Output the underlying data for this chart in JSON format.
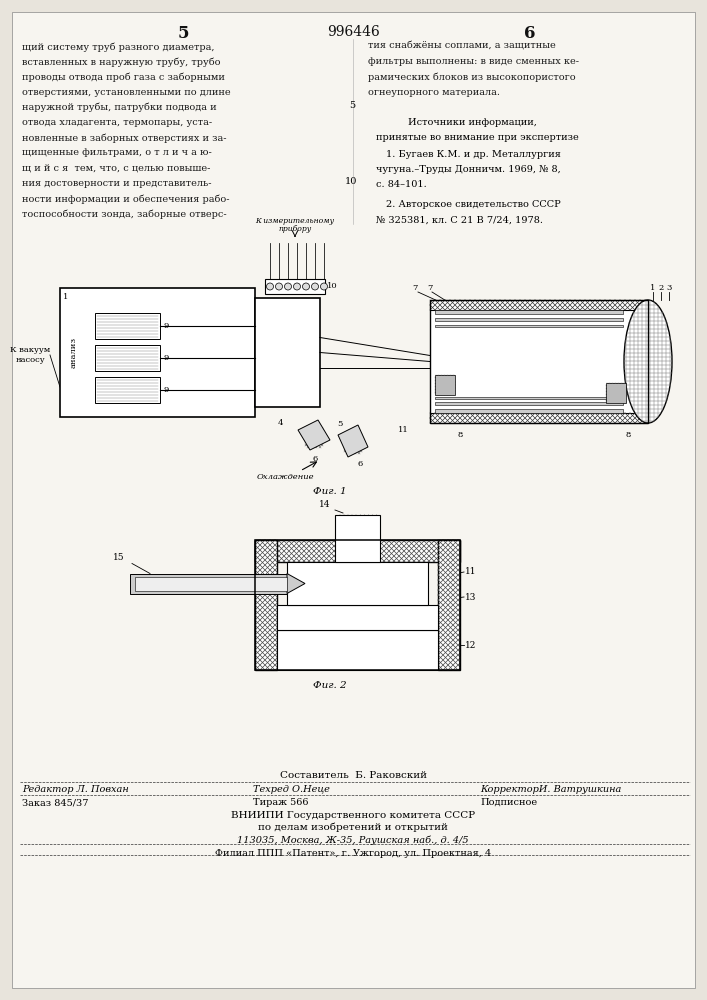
{
  "bg_color": "#e8e4dc",
  "page_color": "#f7f5f0",
  "title_center": "996446",
  "left_col_num": "5",
  "right_col_num": "6",
  "left_text": [
    "щий систему труб разного диаметра,",
    "вставленных в наружную трубу, трубо",
    "проводы отвода проб газа с заборными",
    "отверстиями, установленными по длине",
    "наружной трубы, патрубки подвода и",
    "отвода хладагента, термопары, уста-",
    "новленные в заборных отверстиях и за-",
    "щищенные фильтрами, о т л и ч а ю-",
    "щ и й с я  тем, что, с целью повыше-",
    "ния достоверности и представитель-",
    "ности информации и обеспечения рабо-",
    "тоспособности зонда, заборные отверс-"
  ],
  "right_text_top": [
    "тия снабжёны соплами, а защитные",
    "фильтры выполнены: в виде сменных ке-",
    "рамических блоков из высокопористого",
    "огнеупорного материала."
  ],
  "sources_header": "Источники информации,",
  "sources_subheader": "принятые во внимание при экспертизе",
  "source1": "1. Бугаев К.М. и др. Металлургия",
  "source1b": "чугуна.–Труды Донничм. 1969, № 8,",
  "source1c": "с. 84–101.",
  "source2": "2. Авторское свидетельство СССР",
  "source2b": "№ 325381, кл. С 21 В 7/24, 1978.",
  "fig1_label": "Фиг. 1",
  "fig2_label": "Фиг. 2",
  "footer_compiler": "Составитель  Б. Раковский",
  "footer_editor": "Редактор Л. Повхан",
  "footer_techred": "Техред О.Неце",
  "footer_corrector": "КорректорИ. Ватрушкина",
  "footer_order": "Заказ 845/37",
  "footer_tirazh": "Тираж 566",
  "footer_podpisnoe": "Подписное",
  "footer_vniip1": "ВНИИПИ Государственного комитета СССР",
  "footer_vniip2": "по делам изобретений и открытий",
  "footer_addr1": "113035, Москва, Ж-35, Раушская наб., д. 4/5",
  "footer_filial": "Филиал ППП «Патент», г. Ужгород, ул. Проектная, 4"
}
